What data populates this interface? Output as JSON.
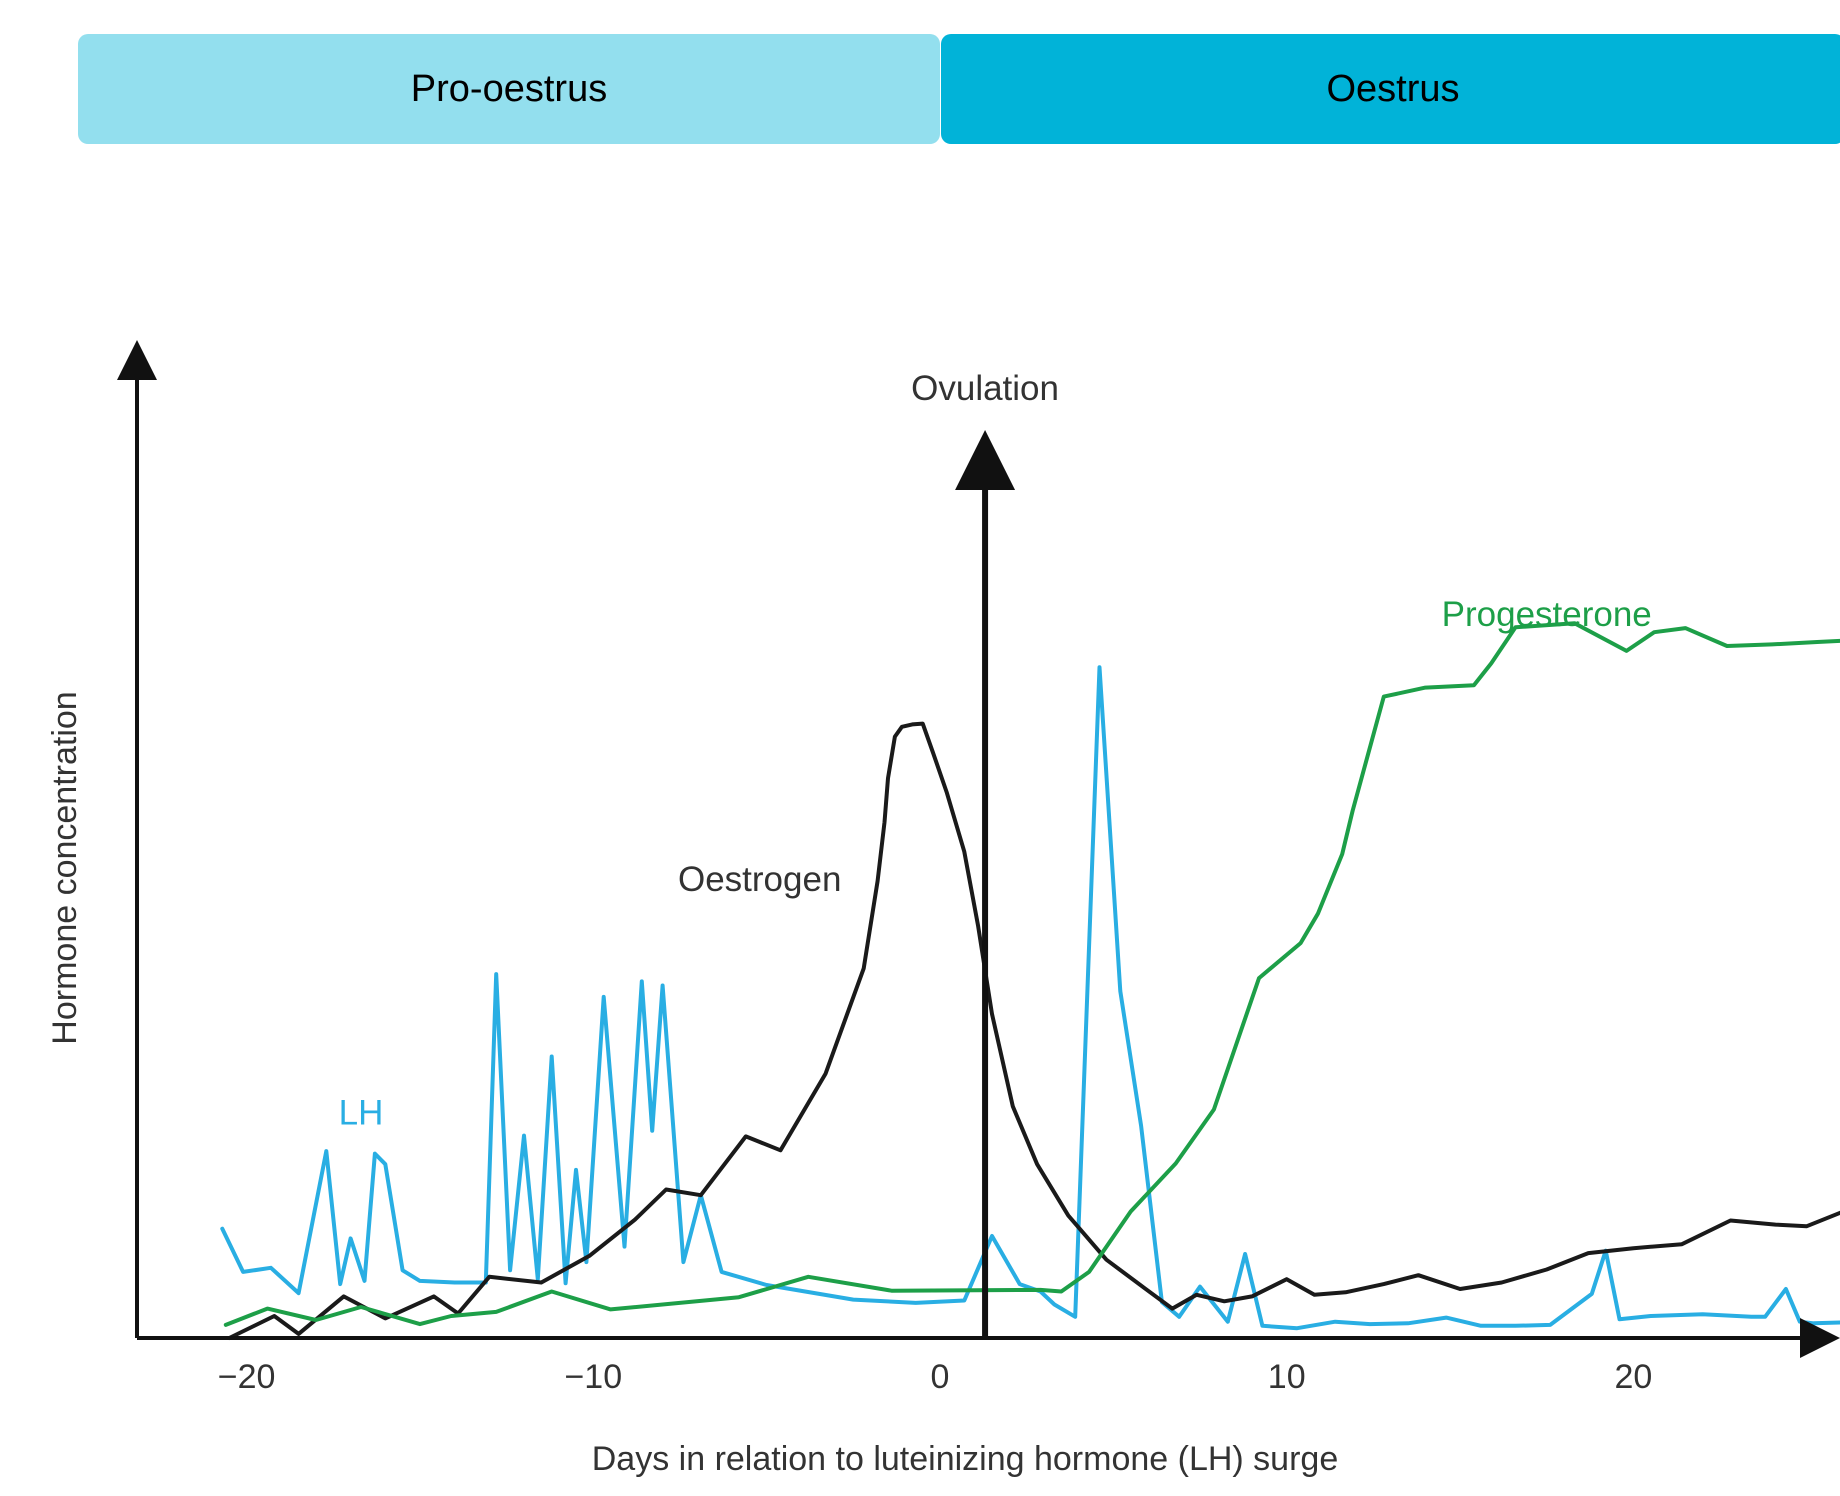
{
  "phases": [
    {
      "label": "Pro-oestrus",
      "color": "#93dfee"
    },
    {
      "label": "Oestrus",
      "color": "#01b3d8"
    }
  ],
  "chart_data": {
    "type": "line",
    "title": "",
    "xlabel": "Days in relation to luteinizing hormone (LH) surge",
    "ylabel": "Hormone concentration",
    "xlim": [
      -25,
      26
    ],
    "ylim": [
      0,
      100
    ],
    "x_ticks": [
      {
        "value": -20,
        "label": "−20"
      },
      {
        "value": -10,
        "label": "−10"
      },
      {
        "value": 0,
        "label": "0"
      },
      {
        "value": 10,
        "label": "10"
      },
      {
        "value": 20,
        "label": "20"
      }
    ],
    "grid": false,
    "annotations": [
      {
        "text": "Ovulation",
        "x": 1.3,
        "marker": "vertical-arrow",
        "color": "#111111"
      }
    ],
    "series": [
      {
        "name": "LH",
        "color": "#29aee3",
        "label_at": [
          -16.7,
          27.5
        ],
        "points": [
          [
            -20.7,
            13.4
          ],
          [
            -20.1,
            8.1
          ],
          [
            -19.3,
            8.6
          ],
          [
            -18.5,
            5.5
          ],
          [
            -17.7,
            22.9
          ],
          [
            -17.3,
            6.6
          ],
          [
            -17.0,
            12.2
          ],
          [
            -16.6,
            7.0
          ],
          [
            -16.3,
            22.6
          ],
          [
            -16.0,
            21.3
          ],
          [
            -15.5,
            8.3
          ],
          [
            -15.0,
            7.0
          ],
          [
            -14.0,
            6.8
          ],
          [
            -13.1,
            6.8
          ],
          [
            -12.8,
            44.6
          ],
          [
            -12.4,
            8.3
          ],
          [
            -12.0,
            24.8
          ],
          [
            -11.6,
            7.2
          ],
          [
            -11.2,
            34.5
          ],
          [
            -10.8,
            6.7
          ],
          [
            -10.5,
            20.6
          ],
          [
            -10.2,
            9.3
          ],
          [
            -9.7,
            41.8
          ],
          [
            -9.1,
            11.2
          ],
          [
            -8.6,
            43.7
          ],
          [
            -8.3,
            25.4
          ],
          [
            -8.0,
            43.2
          ],
          [
            -7.4,
            9.3
          ],
          [
            -6.9,
            17.5
          ],
          [
            -6.3,
            8.1
          ],
          [
            -5.0,
            6.5
          ],
          [
            -2.5,
            4.7
          ],
          [
            -0.7,
            4.3
          ],
          [
            0.7,
            4.6
          ],
          [
            1.5,
            12.5
          ],
          [
            2.3,
            6.6
          ],
          [
            2.9,
            5.7
          ],
          [
            3.3,
            4.1
          ],
          [
            3.9,
            2.6
          ],
          [
            4.6,
            82.2
          ],
          [
            5.2,
            42.5
          ],
          [
            5.8,
            26.0
          ],
          [
            6.4,
            4.4
          ],
          [
            6.9,
            2.6
          ],
          [
            7.5,
            6.3
          ],
          [
            8.3,
            2.0
          ],
          [
            8.8,
            10.3
          ],
          [
            9.3,
            1.5
          ],
          [
            10.3,
            1.2
          ],
          [
            11.4,
            2.0
          ],
          [
            12.4,
            1.7
          ],
          [
            13.5,
            1.8
          ],
          [
            14.6,
            2.5
          ],
          [
            15.6,
            1.5
          ],
          [
            16.6,
            1.5
          ],
          [
            17.6,
            1.6
          ],
          [
            18.8,
            5.4
          ],
          [
            19.2,
            10.7
          ],
          [
            19.6,
            2.3
          ],
          [
            20.5,
            2.7
          ],
          [
            22.0,
            2.9
          ],
          [
            23.4,
            2.6
          ],
          [
            23.8,
            2.6
          ],
          [
            24.4,
            6.0
          ],
          [
            24.8,
            2.0
          ],
          [
            25.2,
            1.8
          ],
          [
            26.0,
            1.9
          ],
          [
            26.7,
            2.7
          ],
          [
            26.9,
            2.7
          ]
        ]
      },
      {
        "name": "Oestrogen",
        "color": "#1a1a1a",
        "label_at": [
          -5.2,
          56.1
        ],
        "points": [
          [
            -20.5,
            0
          ],
          [
            -19.2,
            2.7
          ],
          [
            -18.5,
            0.5
          ],
          [
            -17.2,
            5.1
          ],
          [
            -16.0,
            2.4
          ],
          [
            -14.6,
            5.1
          ],
          [
            -13.9,
            3.0
          ],
          [
            -13.0,
            7.5
          ],
          [
            -11.5,
            6.8
          ],
          [
            -10.1,
            10.1
          ],
          [
            -8.8,
            14.5
          ],
          [
            -7.9,
            18.2
          ],
          [
            -6.9,
            17.5
          ],
          [
            -5.6,
            24.7
          ],
          [
            -4.6,
            23.0
          ],
          [
            -3.3,
            32.4
          ],
          [
            -2.2,
            45.3
          ],
          [
            -1.8,
            56.0
          ],
          [
            -1.6,
            63.2
          ],
          [
            -1.5,
            68.6
          ],
          [
            -1.3,
            73.7
          ],
          [
            -1.1,
            74.9
          ],
          [
            -0.8,
            75.2
          ],
          [
            -0.5,
            75.3
          ],
          [
            -0.2,
            71.7
          ],
          [
            0.2,
            66.8
          ],
          [
            0.7,
            59.6
          ],
          [
            1.1,
            50.5
          ],
          [
            1.5,
            39.7
          ],
          [
            2.1,
            28.4
          ],
          [
            2.8,
            21.3
          ],
          [
            3.7,
            15.0
          ],
          [
            4.8,
            9.6
          ],
          [
            5.9,
            6.1
          ],
          [
            6.7,
            3.6
          ],
          [
            7.4,
            5.3
          ],
          [
            8.2,
            4.5
          ],
          [
            9.0,
            5.1
          ],
          [
            10.0,
            7.2
          ],
          [
            10.8,
            5.3
          ],
          [
            11.7,
            5.6
          ],
          [
            12.8,
            6.6
          ],
          [
            13.8,
            7.7
          ],
          [
            15.0,
            6.0
          ],
          [
            16.2,
            6.8
          ],
          [
            17.5,
            8.4
          ],
          [
            18.7,
            10.4
          ],
          [
            20.0,
            11.0
          ],
          [
            21.4,
            11.5
          ],
          [
            22.8,
            14.4
          ],
          [
            24.1,
            13.9
          ],
          [
            25.0,
            13.7
          ],
          [
            26.0,
            15.4
          ],
          [
            27.5,
            15.5
          ]
        ]
      },
      {
        "name": "Progesterone",
        "color": "#1d9f48",
        "label_at": [
          17.5,
          88.6
        ],
        "points": [
          [
            -20.6,
            1.6
          ],
          [
            -19.4,
            3.6
          ],
          [
            -18.0,
            2.2
          ],
          [
            -16.7,
            3.8
          ],
          [
            -15.0,
            1.7
          ],
          [
            -14.1,
            2.7
          ],
          [
            -12.8,
            3.2
          ],
          [
            -11.2,
            5.7
          ],
          [
            -9.5,
            3.5
          ],
          [
            -5.8,
            5.0
          ],
          [
            -3.8,
            7.5
          ],
          [
            -1.4,
            5.8
          ],
          [
            2.9,
            5.9
          ],
          [
            3.5,
            5.7
          ],
          [
            4.3,
            8.1
          ],
          [
            5.5,
            15.5
          ],
          [
            6.8,
            21.4
          ],
          [
            7.9,
            28.0
          ],
          [
            9.2,
            44.1
          ],
          [
            10.4,
            48.4
          ],
          [
            10.9,
            52.0
          ],
          [
            11.6,
            59.3
          ],
          [
            11.9,
            64.6
          ],
          [
            12.8,
            78.6
          ],
          [
            14.0,
            79.7
          ],
          [
            15.4,
            80.0
          ],
          [
            15.9,
            82.7
          ],
          [
            16.6,
            87.1
          ],
          [
            18.3,
            87.6
          ],
          [
            19.8,
            84.2
          ],
          [
            20.6,
            86.5
          ],
          [
            21.5,
            87.0
          ],
          [
            22.7,
            84.8
          ],
          [
            24.0,
            85.0
          ],
          [
            25.3,
            85.3
          ],
          [
            26.7,
            85.6
          ],
          [
            27.5,
            86.1
          ]
        ]
      }
    ]
  }
}
